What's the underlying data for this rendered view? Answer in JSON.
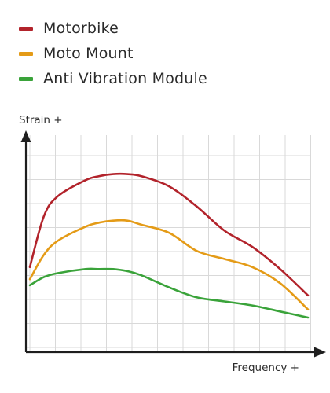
{
  "chart_data": {
    "type": "line",
    "title": "",
    "xlabel": "Frequency +",
    "ylabel": "Strain +",
    "xlim": [
      0,
      10
    ],
    "ylim": [
      0,
      10
    ],
    "grid": true,
    "legend_position": "top-left",
    "series": [
      {
        "name": "Motorbike",
        "color": "#b2232b",
        "x": [
          0,
          0.5,
          1,
          2,
          2.5,
          3,
          3.5,
          4,
          5,
          6,
          7,
          8,
          9,
          10
        ],
        "values": [
          3.9,
          6.4,
          7.4,
          8.2,
          8.4,
          8.5,
          8.5,
          8.4,
          7.9,
          6.9,
          5.7,
          4.9,
          3.8,
          2.5
        ]
      },
      {
        "name": "Moto Mount",
        "color": "#e49b17",
        "x": [
          0,
          0.5,
          1,
          2,
          2.5,
          3,
          3.5,
          4,
          5,
          6,
          7,
          8,
          9,
          10
        ],
        "values": [
          3.3,
          4.5,
          5.2,
          5.9,
          6.1,
          6.2,
          6.2,
          6.0,
          5.6,
          4.7,
          4.3,
          3.9,
          3.1,
          1.8
        ]
      },
      {
        "name": "Anti Vibration Module",
        "color": "#3aa33a",
        "x": [
          0,
          0.5,
          1,
          2,
          2.5,
          3,
          3.5,
          4,
          5,
          6,
          7,
          8,
          9,
          10
        ],
        "values": [
          3.0,
          3.4,
          3.6,
          3.8,
          3.8,
          3.8,
          3.7,
          3.5,
          2.9,
          2.4,
          2.2,
          2.0,
          1.7,
          1.4
        ]
      }
    ]
  }
}
